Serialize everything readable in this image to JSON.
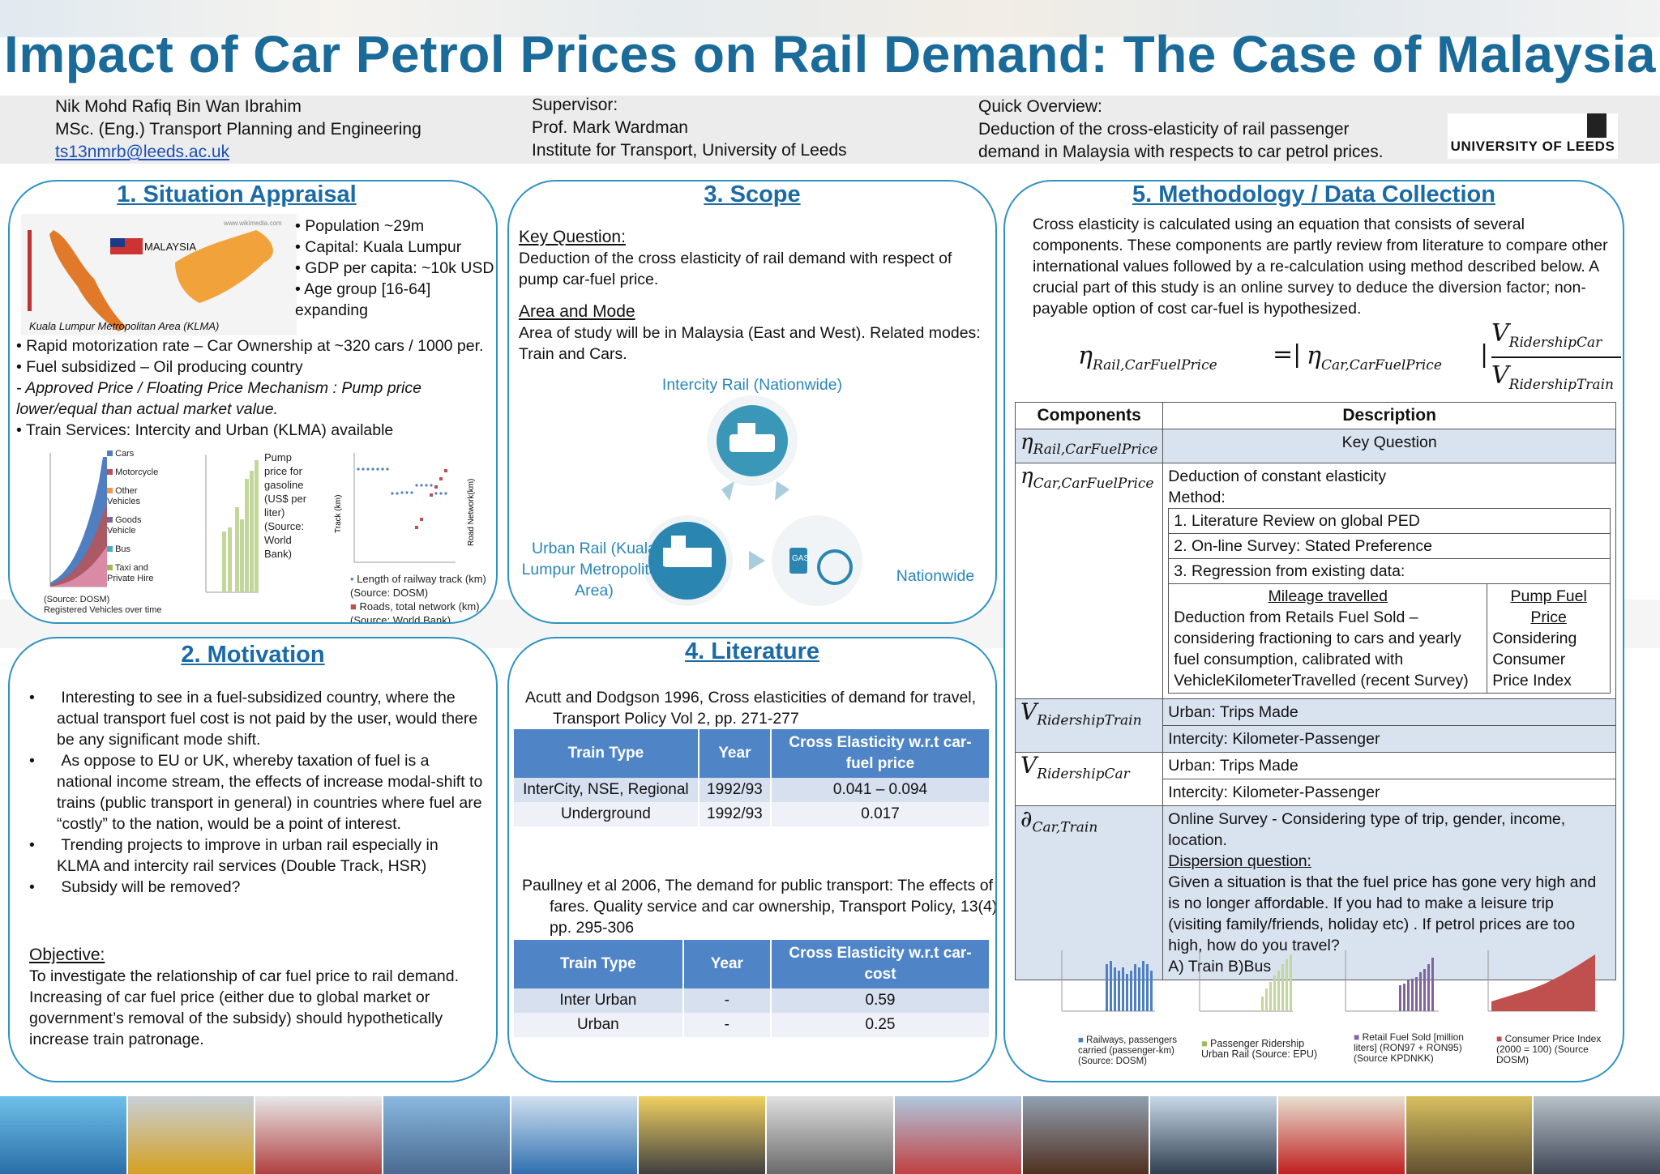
{
  "title": "Impact of Car Petrol Prices on Rail Demand: The Case of Malaysia",
  "author": {
    "name": "Nik Mohd Rafiq Bin Wan Ibrahim",
    "degree": "MSc. (Eng.) Transport Planning and Engineering",
    "email": "ts13nmrb@leeds.ac.uk"
  },
  "supervisor": {
    "label": "Supervisor:",
    "name": "Prof. Mark Wardman",
    "institute": "Institute for Transport, University of Leeds"
  },
  "overview": {
    "label": "Quick Overview:",
    "line1": "Deduction of the cross-elasticity of rail passenger",
    "line2": "demand in Malaysia with respects to car petrol prices."
  },
  "logo": "UNIVERSITY OF LEEDS",
  "s1": {
    "title": "1. Situation Appraisal",
    "map_label": "MALAYSIA",
    "map_source": "www.wikimedia.com",
    "map_caption": "Kuala Lumpur Metropolitan Area (KLMA)",
    "facts": [
      "• Population ~29m",
      "• Capital: Kuala Lumpur",
      "• GDP per capita: ~10k USD",
      "• Age group [16-64]",
      "expanding"
    ],
    "b1": "• Rapid motorization rate – Car Ownership at ~320 cars / 1000 per.",
    "b2": "• Fuel subsidized – Oil producing country",
    "b3": "- Approved Price / Floating Price Mechanism : Pump price lower/equal than actual market value.",
    "b4": "• Train Services: Intercity and Urban (KLMA) available",
    "c1_legend": [
      "Cars",
      "Motorcycle",
      "Other Vehicles",
      "Goods Vehicle",
      "Bus",
      "Taxi and Private Hire"
    ],
    "c1_source": "(Source: DOSM)",
    "c1_caption": "Registered Vehicles over time",
    "c2_legend": "Pump price for gasoline (US$ per liter) (Source: World Bank)",
    "c3_ylabel_left": "Track (km)",
    "c3_ylabel_right": "Road Network(km)",
    "c3_legend1": "Length of railway track (km) (Source: DOSM)",
    "c3_legend2": "Roads, total network (km) (Source: World Bank)"
  },
  "s2": {
    "title": "2. Motivation",
    "bullets": [
      "Interesting to see in a fuel-subsidized country, where the actual transport fuel cost is not paid by the user, would there be any significant mode shift.",
      "As oppose to EU or UK, whereby taxation of fuel is a national income stream, the effects of increase modal-shift to trains (public transport in general) in countries where fuel are “costly” to the nation, would be a point of interest.",
      "Trending projects to improve in urban rail especially in KLMA and intercity rail services (Double Track, HSR)",
      "Subsidy will be removed?"
    ],
    "objective_label": "Objective:",
    "objective": "To investigate the relationship of car fuel price to rail demand. Increasing of car fuel price (either due to global market or government’s removal of the subsidy) should hypothetically increase train patronage."
  },
  "s3": {
    "title": "3. Scope",
    "kq_label": "Key Question:",
    "kq": "Deduction of the cross elasticity of rail demand with respect of pump car-fuel price.",
    "am_label": "Area and Mode",
    "am": "Area of study will be in Malaysia (East and West). Related modes: Train and Cars.",
    "node_top": "Intercity Rail (Nationwide)",
    "node_left": "Urban Rail (Kuala Lumpur Metropolitan Area)",
    "node_right": "Nationwide",
    "gas_label": "GAS"
  },
  "s4": {
    "title": "4. Literature",
    "ref1": "Acutt and Dodgson 1996, Cross elasticities of demand for travel, Transport Policy Vol 2, pp. 271-277",
    "t1_headers": [
      "Train Type",
      "Year",
      "Cross Elasticity w.r.t car-fuel price"
    ],
    "t1_rows": [
      [
        "InterCity, NSE, Regional",
        "1992/93",
        "0.041 – 0.094"
      ],
      [
        "Underground",
        "1992/93",
        "0.017"
      ]
    ],
    "ref2": "Paullney et al 2006, The demand for public transport: The effects of fares. Quality service and car ownership, Transport Policy, 13(4), pp. 295-306",
    "t2_headers": [
      "Train Type",
      "Year",
      "Cross Elasticity w.r.t car-cost"
    ],
    "t2_rows": [
      [
        "Inter Urban",
        "-",
        "0.59"
      ],
      [
        "Urban",
        "-",
        "0.25"
      ]
    ]
  },
  "s5": {
    "title": "5. Methodology / Data Collection",
    "intro": "Cross elasticity is calculated using an equation that consists of several components. These components are partly review from literature to compare other international values followed by a re-calculation using method described below. A crucial part of this study is an online survey to deduce the diversion factor; non-payable option of cost car-fuel is hypothesized.",
    "eq_lhs": "Rail,CarFuelPrice",
    "eq_rhs": "Car,CarFuelPrice",
    "eq_num": "RidershipCar",
    "eq_den": "RidershipTrain",
    "eq_d": "Car,Train",
    "h_components": "Components",
    "h_description": "Description",
    "row1_desc": "Key Question",
    "row2_desc1": "Deduction of constant elasticity",
    "row2_desc2": "Method:",
    "m1": "1. Literature Review on global PED",
    "m2": "2. On-line Survey: Stated Preference",
    "m3": "3. Regression from existing data:",
    "mileage_label": "Mileage travelled",
    "mileage_text": "Deduction from Retails Fuel Sold – considering fractioning to cars and yearly fuel consumption, calibrated with VehicleKilometerTravelled (recent Survey)",
    "pump_label": "Pump Fuel Price",
    "pump_text": "Considering Consumer Price Index",
    "vt_a": "Urban: Trips Made",
    "vt_b": "Intercity: Kilometer-Passenger",
    "vc_a": "Urban: Trips Made",
    "vc_b": "Intercity: Kilometer-Passenger",
    "d1": "Online Survey - Considering type of trip, gender, income, location.",
    "d2": "Dispersion question:",
    "d3": "Given a situation is that the fuel price has gone very high and is no longer affordable. If you had to make a leisure trip (visiting family/friends, holiday etc) . If petrol prices are too high, how do you travel?",
    "d4": "A) Train   B)Bus",
    "mini_legends": [
      "Railways, passengers carried (passenger-km) (Source: DOSM)",
      "Passenger Ridership Urban Rail (Source: EPU)",
      "Retail Fuel Sold [million liters] (RON97 + RON95) (Source KPDNKK)",
      "Consumer Price Index (2000 = 100) (Source DOSM)"
    ]
  },
  "colors": {
    "title": "#1a6a9a",
    "panel_border": "#2f93c2",
    "table_header": "#4f85c6"
  }
}
